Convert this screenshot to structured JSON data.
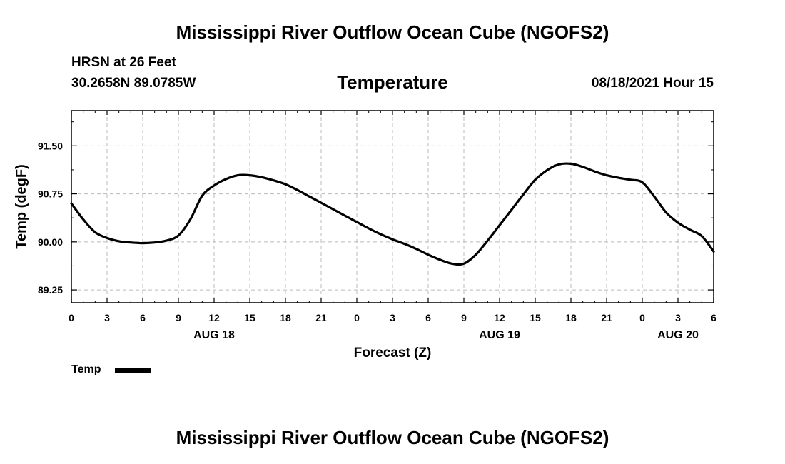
{
  "header": {
    "title": "Mississippi River Outflow Ocean Cube (NGOFS2)",
    "station": "HRSN at 26 Feet",
    "coords": "30.2658N  89.0785W",
    "plot_title": "Temperature",
    "timestamp": "08/18/2021 Hour 15"
  },
  "footer": {
    "title": "Mississippi River Outflow Ocean Cube (NGOFS2)"
  },
  "legend": {
    "label": "Temp"
  },
  "colors": {
    "line": "#000000",
    "grid": "#bbbbbb",
    "axis": "#000000"
  },
  "chart_data": {
    "type": "line",
    "title": "Temperature",
    "xlabel": "Forecast (Z)",
    "ylabel": "Temp (degF)",
    "xlim": [
      0,
      54
    ],
    "ylim": [
      89.05,
      92.05
    ],
    "x_ticks": [
      0,
      3,
      6,
      9,
      12,
      15,
      18,
      21,
      24,
      27,
      30,
      33,
      36,
      39,
      42,
      45,
      48,
      51,
      54
    ],
    "x_tick_labels": [
      "0",
      "3",
      "6",
      "9",
      "12",
      "15",
      "18",
      "21",
      "0",
      "3",
      "6",
      "9",
      "12",
      "15",
      "18",
      "21",
      "0",
      "3",
      "6"
    ],
    "day_labels": [
      {
        "x": 12,
        "label": "AUG 18"
      },
      {
        "x": 36,
        "label": "AUG 19"
      },
      {
        "x": 51,
        "label": "AUG 20"
      }
    ],
    "y_ticks": [
      89.25,
      90.0,
      90.75,
      91.5
    ],
    "y_tick_labels": [
      "89.25",
      "90.00",
      "90.75",
      "91.50"
    ],
    "grid": true,
    "legend_position": "bottom-left",
    "series": [
      {
        "name": "Temp",
        "x": [
          0,
          1,
          2,
          3,
          4,
          5,
          6,
          7,
          8,
          9,
          10,
          11,
          12,
          13,
          14,
          15,
          16,
          17,
          18,
          19,
          20,
          21,
          22,
          23,
          24,
          25,
          26,
          27,
          28,
          29,
          30,
          31,
          32,
          33,
          34,
          35,
          36,
          37,
          38,
          39,
          40,
          41,
          42,
          43,
          44,
          45,
          46,
          47,
          48,
          49,
          50,
          51,
          52,
          53,
          54
        ],
        "values": [
          90.6,
          90.35,
          90.15,
          90.06,
          90.01,
          89.99,
          89.98,
          89.99,
          90.02,
          90.1,
          90.35,
          90.72,
          90.88,
          90.98,
          91.04,
          91.04,
          91.01,
          90.96,
          90.9,
          90.81,
          90.71,
          90.61,
          90.51,
          90.41,
          90.31,
          90.21,
          90.12,
          90.04,
          89.97,
          89.89,
          89.8,
          89.72,
          89.66,
          89.66,
          89.8,
          90.02,
          90.26,
          90.5,
          90.74,
          90.97,
          91.12,
          91.21,
          91.22,
          91.17,
          91.1,
          91.04,
          91.0,
          90.97,
          90.93,
          90.71,
          90.46,
          90.3,
          90.19,
          90.09,
          89.85
        ]
      }
    ]
  }
}
